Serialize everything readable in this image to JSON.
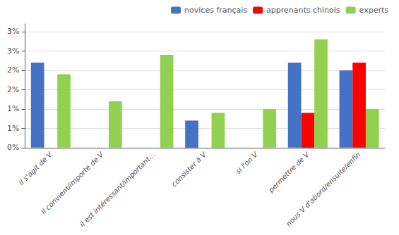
{
  "chart_data": {
    "type": "bar",
    "categories": [
      "il s'agit de V",
      "il convient/importe de V",
      "il est intéressant/important...",
      "consister à V",
      "si l'on V",
      "permettre de V",
      "nous V d'abord/ensuite/enfin"
    ],
    "series": [
      {
        "name": "novices français",
        "color": "#4472C4",
        "values": [
          0.022,
          0.0,
          0.0,
          0.007,
          0.0,
          0.022,
          0.02
        ]
      },
      {
        "name": "apprenants chinois",
        "color": "#FF0000",
        "values": [
          0.0,
          0.0,
          0.0,
          0.0,
          0.0,
          0.009,
          0.022
        ]
      },
      {
        "name": "experts",
        "color": "#92D050",
        "values": [
          0.019,
          0.012,
          0.024,
          0.009,
          0.01,
          0.028,
          0.01
        ]
      }
    ],
    "ylim": [
      0,
      0.032
    ],
    "yticks": [
      {
        "value": 0.0,
        "label": "0%"
      },
      {
        "value": 0.005,
        "label": "1%"
      },
      {
        "value": 0.01,
        "label": "1%"
      },
      {
        "value": 0.015,
        "label": "2%"
      },
      {
        "value": 0.02,
        "label": "2%"
      },
      {
        "value": 0.025,
        "label": "3%"
      },
      {
        "value": 0.03,
        "label": "3%"
      }
    ],
    "grid": true,
    "legend": "upper right"
  }
}
